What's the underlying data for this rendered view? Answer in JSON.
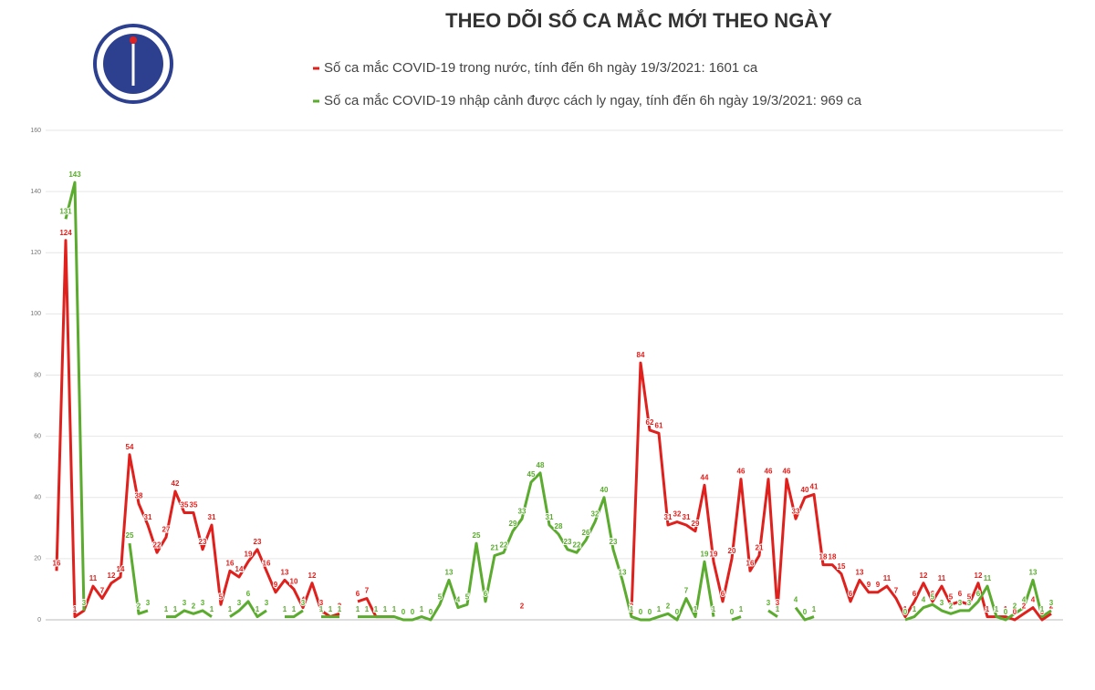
{
  "chart_data": {
    "type": "line",
    "title": "THEO DÕI SỐ CA MẮC MỚI THEO NGÀY",
    "categories": [
      null,
      null,
      null,
      null,
      null,
      null,
      null,
      null,
      null,
      null,
      null,
      null,
      null,
      null,
      null,
      null,
      null,
      null,
      null,
      null,
      null,
      null,
      null,
      null,
      null,
      null,
      null,
      null,
      null,
      null,
      null,
      null,
      null,
      null,
      null,
      null,
      null,
      null,
      null,
      null,
      null,
      null,
      null,
      null,
      null,
      null,
      null,
      null,
      null,
      null,
      null,
      null,
      null,
      null,
      null,
      null,
      null,
      null,
      null,
      null,
      null,
      null,
      null,
      null,
      null,
      null,
      null,
      null,
      null,
      null,
      null,
      null,
      null,
      null,
      null,
      null,
      null,
      null,
      null,
      null,
      null,
      null,
      null,
      null,
      null,
      null,
      null,
      null,
      null,
      null,
      null,
      null,
      null,
      null,
      null,
      null,
      null,
      null,
      null,
      null,
      null,
      null,
      null,
      null,
      null,
      null,
      null,
      null,
      null,
      null
    ],
    "series": [
      {
        "name": "Số ca mắc COVID-19 trong nước, tính đến 6h ngày 19/3/2021: 1601 ca",
        "color": "#e0201c",
        "values": [
          16,
          124,
          1,
          3,
          11,
          7,
          12,
          14,
          54,
          38,
          31,
          22,
          27,
          42,
          35,
          35,
          23,
          31,
          5,
          16,
          14,
          19,
          23,
          16,
          9,
          13,
          10,
          4,
          12,
          3,
          1,
          2,
          null,
          6,
          7,
          1,
          1,
          1,
          null,
          null,
          null,
          null,
          null,
          null,
          null,
          null,
          null,
          null,
          null,
          null,
          null,
          2,
          null,
          null,
          null,
          null,
          null,
          null,
          null,
          null,
          null,
          null,
          null,
          2,
          84,
          62,
          61,
          31,
          32,
          31,
          29,
          44,
          19,
          6,
          20,
          46,
          16,
          21,
          46,
          3,
          46,
          33,
          40,
          41,
          18,
          18,
          15,
          6,
          13,
          9,
          9,
          11,
          7,
          1,
          6,
          12,
          6,
          11,
          5,
          6,
          5,
          12,
          1,
          1,
          1,
          0,
          2,
          4,
          0,
          2
        ]
      },
      {
        "name": "Số ca mắc COVID-19 nhập cảnh được cách ly ngay, tính đến 6h ngày 19/3/2021: 969 ca",
        "color": "#5aab2e",
        "values": [
          null,
          131,
          143,
          3,
          null,
          null,
          null,
          null,
          25,
          2,
          3,
          null,
          1,
          1,
          3,
          2,
          3,
          1,
          null,
          1,
          3,
          6,
          1,
          3,
          null,
          1,
          1,
          3,
          null,
          1,
          1,
          1,
          null,
          1,
          1,
          1,
          1,
          1,
          0,
          0,
          1,
          0,
          5,
          13,
          4,
          5,
          25,
          6,
          21,
          22,
          29,
          33,
          45,
          48,
          31,
          28,
          23,
          22,
          26,
          32,
          40,
          23,
          13,
          1,
          0,
          0,
          1,
          2,
          0,
          7,
          1,
          19,
          1,
          null,
          0,
          1,
          null,
          null,
          3,
          1,
          null,
          4,
          0,
          1,
          null,
          null,
          null,
          null,
          null,
          null,
          null,
          null,
          null,
          0,
          1,
          4,
          5,
          3,
          2,
          3,
          3,
          6,
          11,
          1,
          0,
          2,
          4,
          13,
          1,
          3
        ]
      }
    ],
    "ylim": [
      0,
      160
    ],
    "yticks": [
      0,
      20,
      40,
      60,
      80,
      100,
      120,
      140,
      160
    ],
    "grid": true
  }
}
